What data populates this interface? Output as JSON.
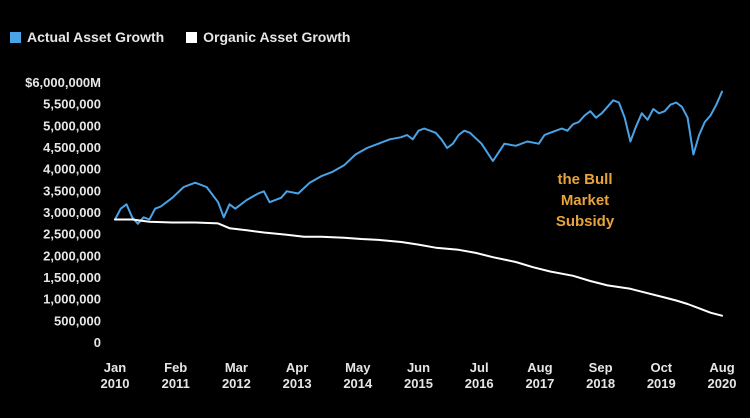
{
  "chart_data": {
    "type": "line",
    "title": "",
    "xlabel": "",
    "ylabel": "",
    "legend": [
      "Actual Asset Growth",
      "Organic Asset Growth"
    ],
    "legend_position": "top-left",
    "grid": false,
    "ylim": [
      0,
      6000000
    ],
    "y_ticks": [
      "$6,000,000M",
      "5,500,000",
      "5,000,000",
      "4,500,000",
      "4,000,000",
      "3,500,000",
      "3,000,000",
      "2,500,000",
      "2,000,000",
      "1,500,000",
      "1,000,000",
      "500,000",
      "0"
    ],
    "x_ticks": [
      {
        "month": "Jan",
        "year": "2010"
      },
      {
        "month": "Feb",
        "year": "2011"
      },
      {
        "month": "Mar",
        "year": "2012"
      },
      {
        "month": "Apr",
        "year": "2013"
      },
      {
        "month": "May",
        "year": "2014"
      },
      {
        "month": "Jun",
        "year": "2015"
      },
      {
        "month": "Jul",
        "year": "2016"
      },
      {
        "month": "Aug",
        "year": "2017"
      },
      {
        "month": "Sep",
        "year": "2018"
      },
      {
        "month": "Oct",
        "year": "2019"
      },
      {
        "month": "Aug",
        "year": "2020"
      }
    ],
    "annotation": [
      "the Bull",
      "Market",
      "Subsidy"
    ],
    "series": [
      {
        "name": "Actual Asset Growth",
        "color": "#4aa3e6",
        "x": [
          2010.0,
          2010.1,
          2010.2,
          2010.3,
          2010.4,
          2010.5,
          2010.6,
          2010.7,
          2010.8,
          2011.0,
          2011.2,
          2011.4,
          2011.6,
          2011.8,
          2011.9,
          2012.0,
          2012.1,
          2012.3,
          2012.5,
          2012.6,
          2012.7,
          2012.9,
          2013.0,
          2013.2,
          2013.4,
          2013.6,
          2013.8,
          2014.0,
          2014.2,
          2014.4,
          2014.6,
          2014.8,
          2015.0,
          2015.1,
          2015.2,
          2015.3,
          2015.4,
          2015.5,
          2015.6,
          2015.7,
          2015.8,
          2015.9,
          2016.0,
          2016.1,
          2016.2,
          2016.4,
          2016.6,
          2016.8,
          2017.0,
          2017.2,
          2017.4,
          2017.5,
          2017.6,
          2017.7,
          2017.8,
          2017.9,
          2018.0,
          2018.1,
          2018.2,
          2018.3,
          2018.4,
          2018.5,
          2018.6,
          2018.7,
          2018.8,
          2018.9,
          2019.0,
          2019.1,
          2019.2,
          2019.3,
          2019.4,
          2019.5,
          2019.6,
          2019.7,
          2019.8,
          2019.9,
          2020.0,
          2020.1,
          2020.2,
          2020.3,
          2020.4,
          2020.5,
          2020.6
        ],
        "values": [
          2850000,
          3100000,
          3200000,
          2900000,
          2750000,
          2900000,
          2850000,
          3100000,
          3150000,
          3350000,
          3600000,
          3700000,
          3600000,
          3250000,
          2900000,
          3200000,
          3100000,
          3300000,
          3450000,
          3500000,
          3250000,
          3350000,
          3500000,
          3450000,
          3700000,
          3850000,
          3950000,
          4100000,
          4350000,
          4500000,
          4600000,
          4700000,
          4750000,
          4800000,
          4700000,
          4900000,
          4950000,
          4900000,
          4850000,
          4700000,
          4500000,
          4600000,
          4800000,
          4900000,
          4850000,
          4600000,
          4200000,
          4600000,
          4550000,
          4650000,
          4600000,
          4800000,
          4850000,
          4900000,
          4950000,
          4900000,
          5050000,
          5100000,
          5250000,
          5350000,
          5200000,
          5300000,
          5450000,
          5600000,
          5550000,
          5200000,
          4650000,
          5000000,
          5300000,
          5150000,
          5400000,
          5300000,
          5350000,
          5500000,
          5550000,
          5450000,
          5200000,
          4350000,
          4800000,
          5100000,
          5250000,
          5500000,
          5800000
        ]
      },
      {
        "name": "Organic Asset Growth",
        "color": "#ffffff",
        "x": [
          2010.0,
          2010.3,
          2010.6,
          2011.0,
          2011.4,
          2011.8,
          2012.0,
          2012.3,
          2012.6,
          2013.0,
          2013.3,
          2013.6,
          2014.0,
          2014.3,
          2014.6,
          2015.0,
          2015.3,
          2015.6,
          2016.0,
          2016.3,
          2016.6,
          2017.0,
          2017.3,
          2017.6,
          2018.0,
          2018.3,
          2018.6,
          2019.0,
          2019.3,
          2019.6,
          2019.8,
          2020.0,
          2020.2,
          2020.4,
          2020.6
        ],
        "values": [
          2850000,
          2850000,
          2800000,
          2780000,
          2780000,
          2760000,
          2650000,
          2600000,
          2550000,
          2500000,
          2450000,
          2450000,
          2430000,
          2400000,
          2380000,
          2330000,
          2270000,
          2200000,
          2150000,
          2080000,
          1980000,
          1870000,
          1750000,
          1650000,
          1550000,
          1430000,
          1330000,
          1250000,
          1150000,
          1050000,
          980000,
          900000,
          800000,
          700000,
          630000
        ]
      }
    ]
  }
}
